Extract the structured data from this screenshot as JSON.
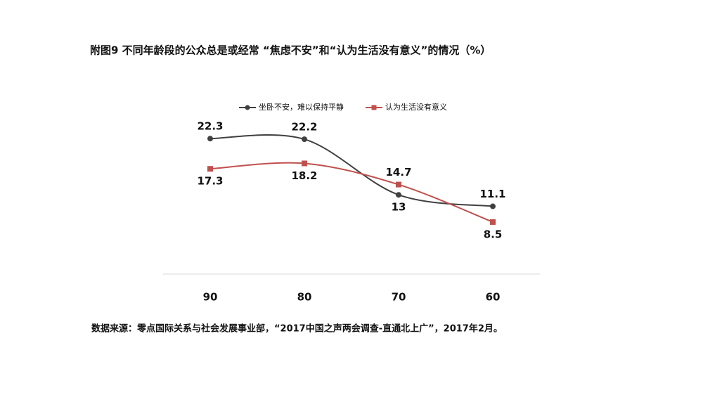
{
  "chart_data": {
    "type": "line",
    "title": "附图9 不同年龄段的公众总是或经常 “焦虑不安”和“认为生活没有意义”的情况（%）",
    "categories": [
      "90",
      "80",
      "70",
      "60"
    ],
    "series": [
      {
        "name": "坐卧不安，难以保持平静",
        "color": "#404040",
        "marker": "circle",
        "values": [
          22.3,
          22.2,
          13,
          11.1
        ]
      },
      {
        "name": "认为生活没有意义",
        "color": "#c0504d",
        "marker": "square",
        "values": [
          17.3,
          18.2,
          14.7,
          8.5
        ]
      }
    ],
    "ylim": [
      0,
      25
    ],
    "legend": "top",
    "note": "数据来源：零点国际关系与社会发展事业部，“2017中国之声两会调查-直通北上广”，2017年2月。"
  }
}
